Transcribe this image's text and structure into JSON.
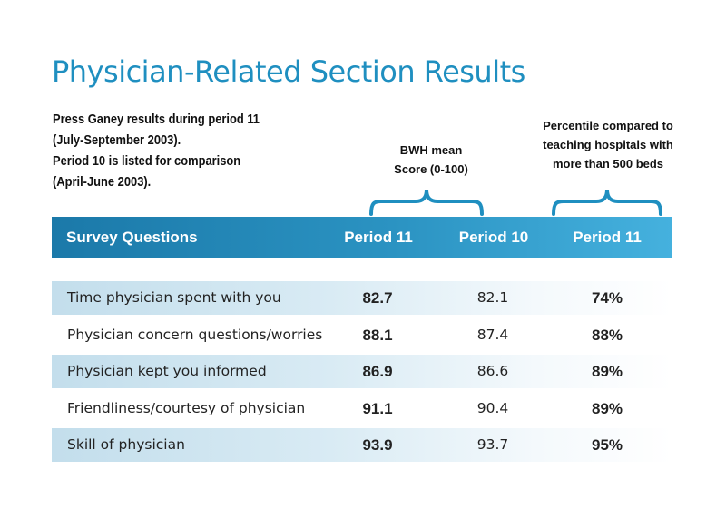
{
  "title": "Physician-Related Section Results",
  "intro": {
    "line1": "Press Ganey results during period 11",
    "line2": "(July-September 2003).",
    "line3": "Period 10 is listed for comparison",
    "line4": "(April-June 2003)."
  },
  "group_labels": {
    "bwh_line1": "BWH mean",
    "bwh_line2": "Score (0-100)",
    "pct_line1": "Percentile compared to",
    "pct_line2": "teaching hospitals with",
    "pct_line3": "more than 500 beds"
  },
  "table": {
    "headers": [
      "Survey Questions",
      "Period 11",
      "Period 10",
      "Period 11"
    ],
    "rows": [
      {
        "question": "Time physician spent with you",
        "p11": "82.7",
        "p10": "82.1",
        "pct": "74%"
      },
      {
        "question": "Physician concern questions/worries",
        "p11": "88.1",
        "p10": "87.4",
        "pct": "88%"
      },
      {
        "question": "Physician kept you informed",
        "p11": "86.9",
        "p10": "86.6",
        "pct": "89%"
      },
      {
        "question": "Friendliness/courtesy of physician",
        "p11": "91.1",
        "p10": "90.4",
        "pct": "89%"
      },
      {
        "question": "Skill of physician",
        "p11": "93.9",
        "p10": "93.7",
        "pct": "95%"
      }
    ]
  },
  "colors": {
    "accent": "#1f8fc0",
    "header_dark": "#1b79a9",
    "header_light": "#45b1de",
    "row_shade": "#c3deec"
  }
}
